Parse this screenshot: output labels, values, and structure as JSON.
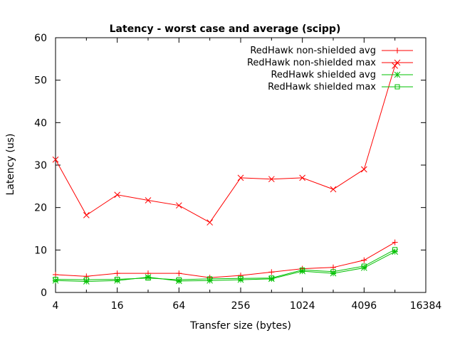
{
  "chart_data": {
    "type": "line",
    "title": "Latency - worst case and average (scipp)",
    "xlabel": "Transfer size (bytes)",
    "ylabel": "Latency (us)",
    "x_scale": "log2",
    "xlim": [
      4,
      16384
    ],
    "ylim": [
      0,
      60
    ],
    "x_ticks": [
      4,
      16,
      64,
      256,
      1024,
      4096,
      16384
    ],
    "x_tick_labels": [
      "4",
      "16",
      "64",
      "256",
      "1024",
      "4096",
      "16384"
    ],
    "y_ticks": [
      0,
      10,
      20,
      30,
      40,
      50,
      60
    ],
    "y_tick_labels": [
      "0",
      "10",
      "20",
      "30",
      "40",
      "50",
      "60"
    ],
    "grid": false,
    "legend_position": "top-right",
    "x": [
      4,
      8,
      16,
      32,
      64,
      128,
      256,
      512,
      1024,
      2048,
      4096,
      8192
    ],
    "series": [
      {
        "name": "RedHawk non-shielded avg",
        "color": "#ff0000",
        "marker": "plus",
        "values": [
          4.2,
          3.8,
          4.5,
          4.5,
          4.5,
          3.5,
          4.0,
          4.8,
          5.6,
          5.9,
          7.6,
          11.8
        ]
      },
      {
        "name": "RedHawk non-shielded max",
        "color": "#ff0000",
        "marker": "cross",
        "values": [
          31.3,
          18.2,
          23.0,
          21.7,
          20.5,
          16.5,
          27.0,
          26.7,
          27.0,
          24.3,
          29.0,
          53.4
        ]
      },
      {
        "name": "RedHawk shielded avg",
        "color": "#00c000",
        "marker": "star",
        "values": [
          2.8,
          2.6,
          2.8,
          3.6,
          2.7,
          2.8,
          3.0,
          3.2,
          5.0,
          4.5,
          5.8,
          9.6
        ]
      },
      {
        "name": "RedHawk shielded max",
        "color": "#00c000",
        "marker": "square",
        "values": [
          3.1,
          3.0,
          3.1,
          3.4,
          3.0,
          3.2,
          3.3,
          3.4,
          5.3,
          4.9,
          6.2,
          10.1
        ]
      }
    ]
  }
}
